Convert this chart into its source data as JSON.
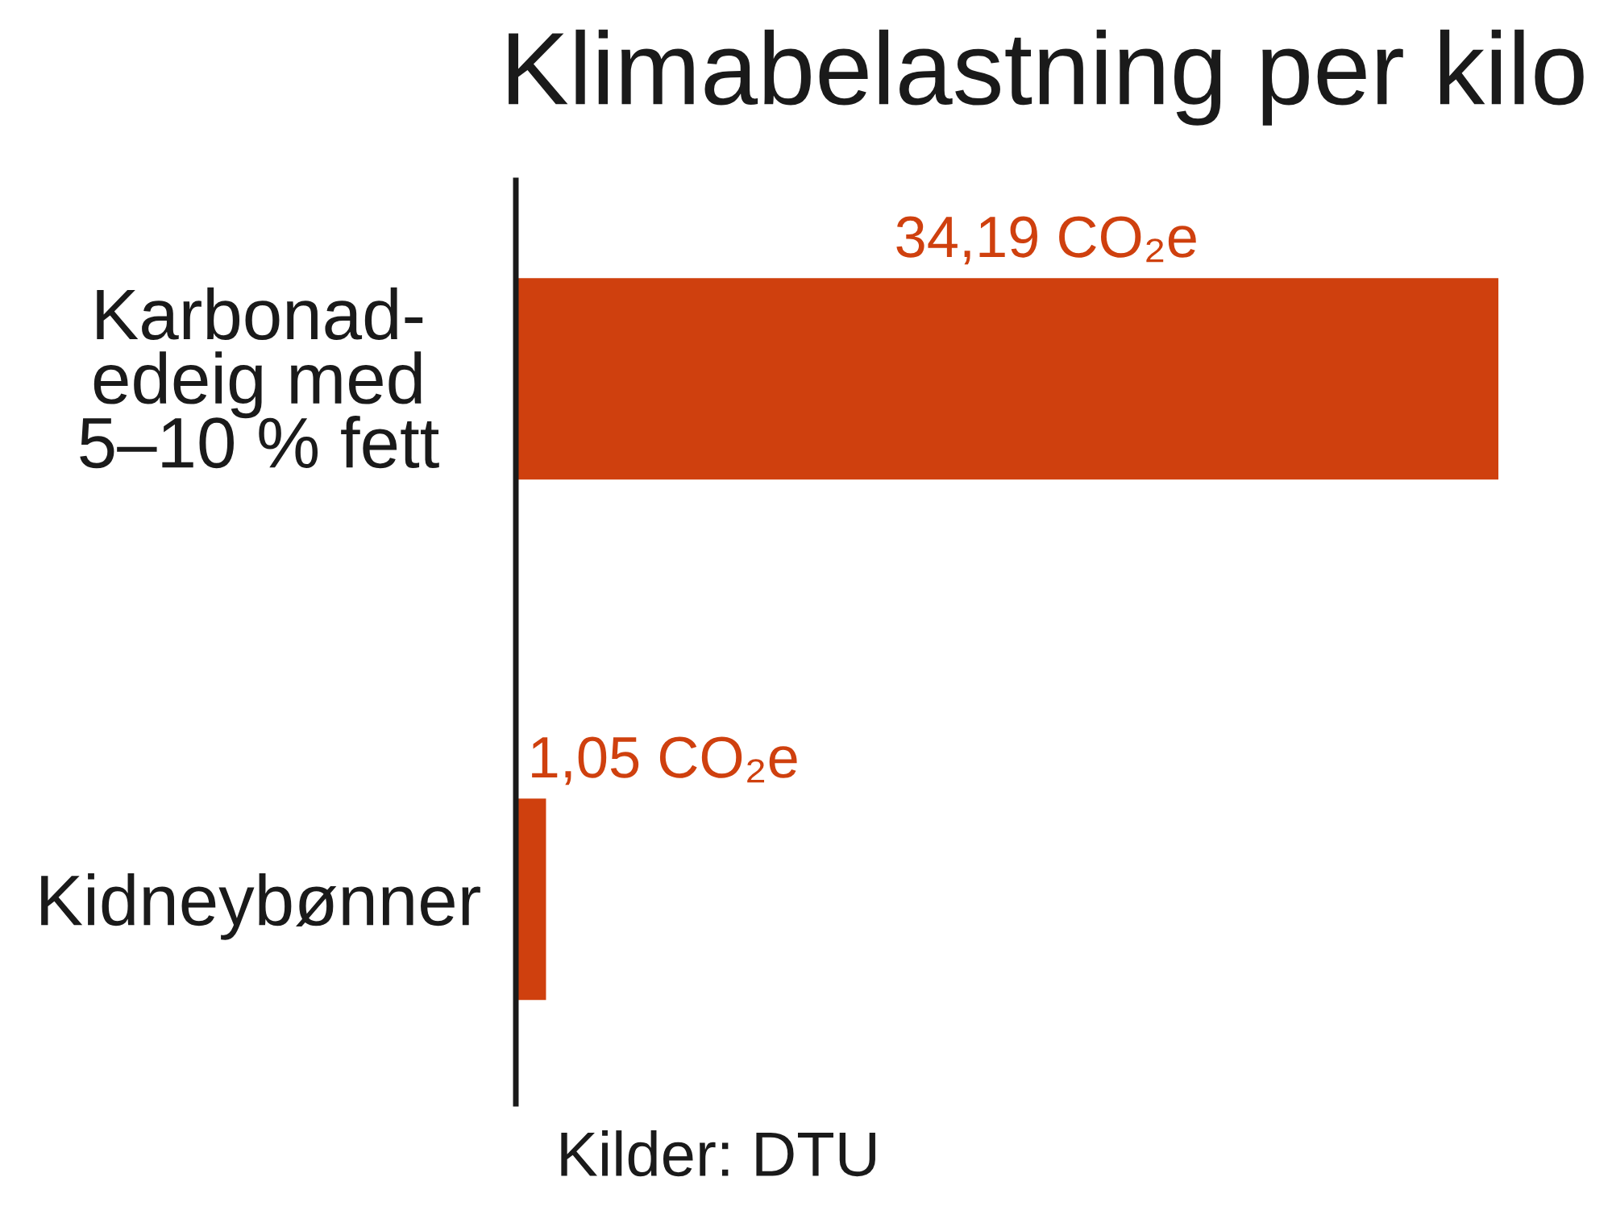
{
  "chart_data": {
    "type": "bar",
    "orientation": "horizontal",
    "title": "Klimabelastning per kilo",
    "categories": [
      "Karbonad-\nedeig med\n5–10 % fett",
      "Kidneybønner"
    ],
    "values": [
      34.19,
      1.05
    ],
    "color": "#cf400e",
    "value_labels": [
      "34,19 CO₂e",
      "1,05 CO₂e"
    ],
    "annotations": [
      "Kilder: DTU"
    ],
    "grid": false,
    "legend": false
  }
}
